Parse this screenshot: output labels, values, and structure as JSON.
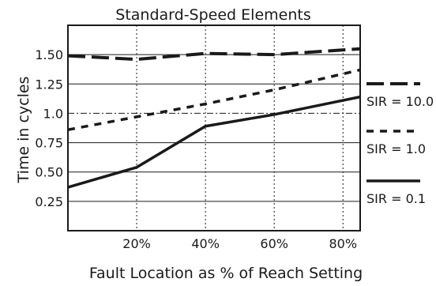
{
  "chart_data": {
    "type": "line",
    "title": "Standard-Speed Elements",
    "xlabel": "Fault Location as % of Reach Setting",
    "ylabel": "Time in cycles",
    "xlim": [
      0,
      85
    ],
    "ylim": [
      0,
      1.75
    ],
    "x_ticks": [
      {
        "value": 20,
        "label": "20%"
      },
      {
        "value": 40,
        "label": "40%"
      },
      {
        "value": 60,
        "label": "60%"
      },
      {
        "value": 80,
        "label": "80%"
      }
    ],
    "y_ticks": [
      {
        "value": 0.25,
        "label": "0.25"
      },
      {
        "value": 0.5,
        "label": "0.50"
      },
      {
        "value": 0.75,
        "label": "0.75"
      },
      {
        "value": 1.0,
        "label": "1.0"
      },
      {
        "value": 1.25,
        "label": "1.25"
      },
      {
        "value": 1.5,
        "label": "1.50"
      }
    ],
    "grid": {
      "horizontal_solid": [
        0.25,
        0.5,
        0.75,
        1.25,
        1.5
      ],
      "horizontal_dashdot": [
        1.0
      ],
      "vertical_dotted": [
        20,
        40,
        60,
        80
      ]
    },
    "series": [
      {
        "name": "SIR = 10.0",
        "style": "long-dash",
        "x": [
          0,
          20,
          40,
          60,
          85
        ],
        "y": [
          1.49,
          1.46,
          1.51,
          1.5,
          1.55
        ]
      },
      {
        "name": "SIR = 1.0",
        "style": "short-dash",
        "x": [
          0,
          20,
          40,
          60,
          85
        ],
        "y": [
          0.86,
          0.97,
          1.08,
          1.2,
          1.37
        ]
      },
      {
        "name": "SIR = 0.1",
        "style": "solid",
        "x": [
          0,
          20,
          40,
          60,
          80,
          85
        ],
        "y": [
          0.37,
          0.54,
          0.89,
          0.99,
          1.11,
          1.14
        ]
      }
    ],
    "legend_position": "right"
  }
}
